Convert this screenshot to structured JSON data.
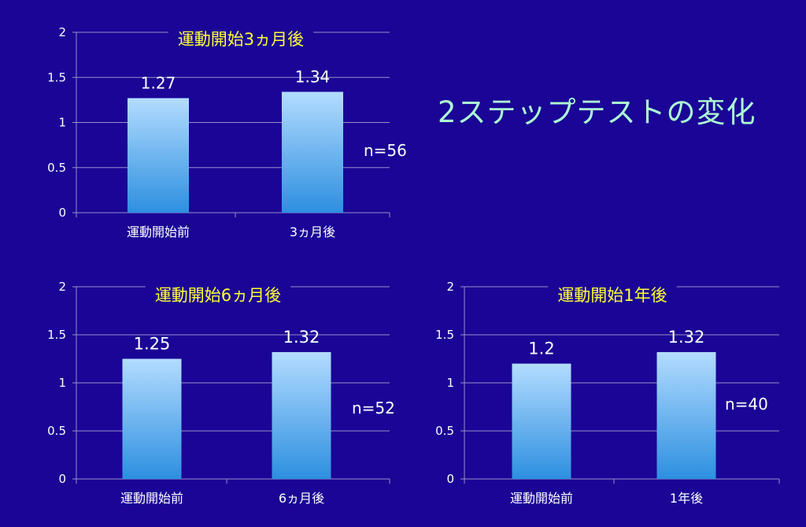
{
  "slide": {
    "title": "2ステップテストの変化"
  },
  "colors": {
    "background": "#1a0596",
    "title": "#aefbd3",
    "chart_title": "#ffff33",
    "text": "#ffffff",
    "gridline": "#9a90c8",
    "bar_top": "#b3dcff",
    "bar_bottom": "#2d8fe0"
  },
  "chart_data": [
    {
      "type": "bar",
      "title": "運動開始3ヵ月後",
      "categories": [
        "運動開始前",
        "3ヵ月後"
      ],
      "values": [
        1.27,
        1.34
      ],
      "value_labels": [
        "1.27",
        "1.34"
      ],
      "ylim": [
        0,
        2
      ],
      "yticks": [
        "0",
        "0.5",
        "1",
        "1.5",
        "2"
      ],
      "grid": true,
      "note": "n=56",
      "xlabel": "",
      "ylabel": ""
    },
    {
      "type": "bar",
      "title": "運動開始6ヵ月後",
      "categories": [
        "運動開始前",
        "6ヵ月後"
      ],
      "values": [
        1.25,
        1.32
      ],
      "value_labels": [
        "1.25",
        "1.32"
      ],
      "ylim": [
        0,
        2
      ],
      "yticks": [
        "0",
        "0.5",
        "1",
        "1.5",
        "2"
      ],
      "grid": true,
      "note": "n=52",
      "xlabel": "",
      "ylabel": ""
    },
    {
      "type": "bar",
      "title": "運動開始1年後",
      "categories": [
        "運動開始前",
        "1年後"
      ],
      "values": [
        1.2,
        1.32
      ],
      "value_labels": [
        "1.2",
        "1.32"
      ],
      "ylim": [
        0,
        2
      ],
      "yticks": [
        "0",
        "0.5",
        "1",
        "1.5",
        "2"
      ],
      "grid": true,
      "note": "n=40",
      "xlabel": "",
      "ylabel": ""
    }
  ]
}
